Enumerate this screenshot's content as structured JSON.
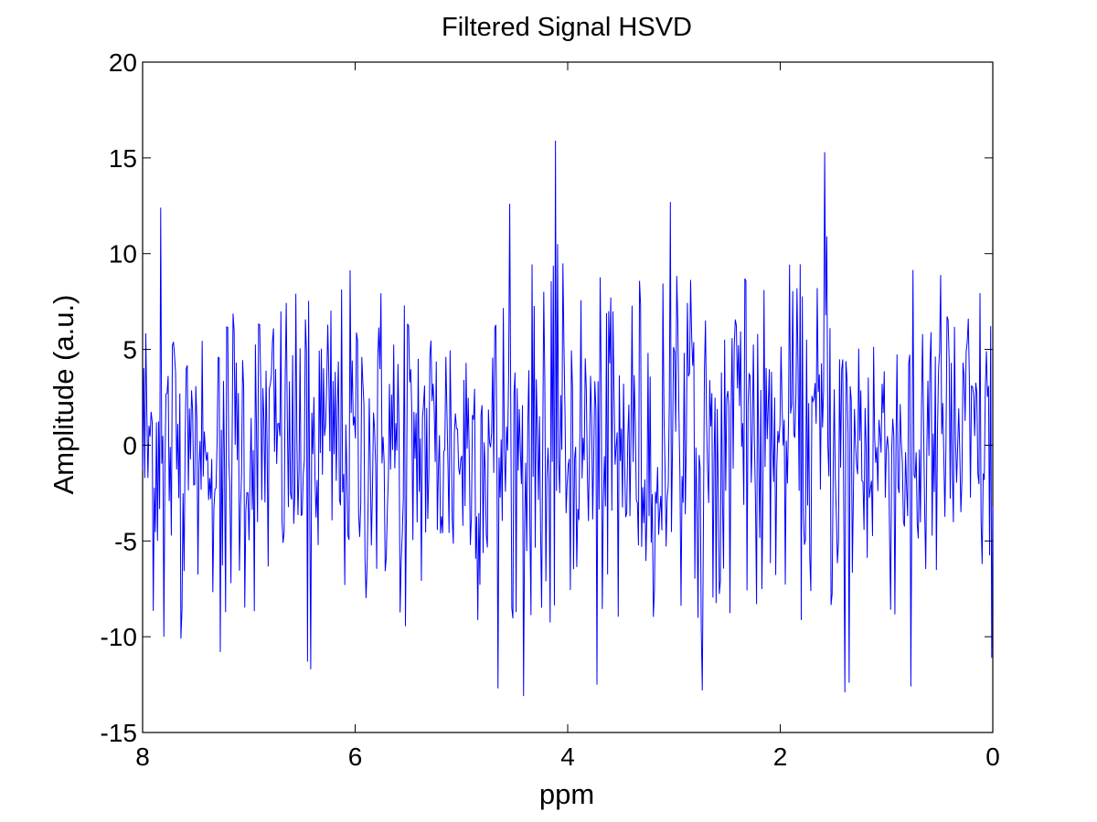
{
  "chart_data": {
    "type": "line",
    "title": "Filtered Signal HSVD",
    "xlabel": "ppm",
    "ylabel": "Amplitude (a.u.)",
    "xlim": [
      8,
      0
    ],
    "x_reversed": true,
    "ylim": [
      -15,
      20
    ],
    "xticks": [
      8,
      6,
      4,
      2,
      0
    ],
    "xtick_labels": [
      "8",
      "6",
      "4",
      "2",
      "0"
    ],
    "yticks": [
      20,
      15,
      10,
      5,
      0,
      -5,
      -10,
      -15
    ],
    "ytick_labels": [
      "20",
      "15",
      "10",
      "5",
      "0",
      "-5",
      "-10",
      "-15"
    ],
    "grid": false,
    "legend": "none",
    "line_color": "#0000ff",
    "axes_color": "#000000",
    "series": [
      {
        "sample_count": 800,
        "x_range": [
          8,
          0
        ],
        "peaks": [
          {
            "x": 7.83,
            "y": 12.4
          },
          {
            "x": 7.8,
            "y": -10.0
          },
          {
            "x": 7.64,
            "y": -10.1
          },
          {
            "x": 7.27,
            "y": -10.8
          },
          {
            "x": 6.45,
            "y": -11.3
          },
          {
            "x": 6.42,
            "y": -11.7
          },
          {
            "x": 4.66,
            "y": -12.7
          },
          {
            "x": 4.55,
            "y": 12.6
          },
          {
            "x": 4.42,
            "y": -13.1
          },
          {
            "x": 4.12,
            "y": 15.9
          },
          {
            "x": 4.1,
            "y": 10.5
          },
          {
            "x": 3.72,
            "y": -12.5
          },
          {
            "x": 3.03,
            "y": 12.7
          },
          {
            "x": 2.73,
            "y": -12.8
          },
          {
            "x": 1.58,
            "y": 15.3
          },
          {
            "x": 1.56,
            "y": 10.9
          },
          {
            "x": 1.39,
            "y": -12.9
          },
          {
            "x": 1.35,
            "y": -12.4
          },
          {
            "x": 0.77,
            "y": -12.6
          },
          {
            "x": 0.01,
            "y": -11.1
          }
        ]
      }
    ]
  }
}
